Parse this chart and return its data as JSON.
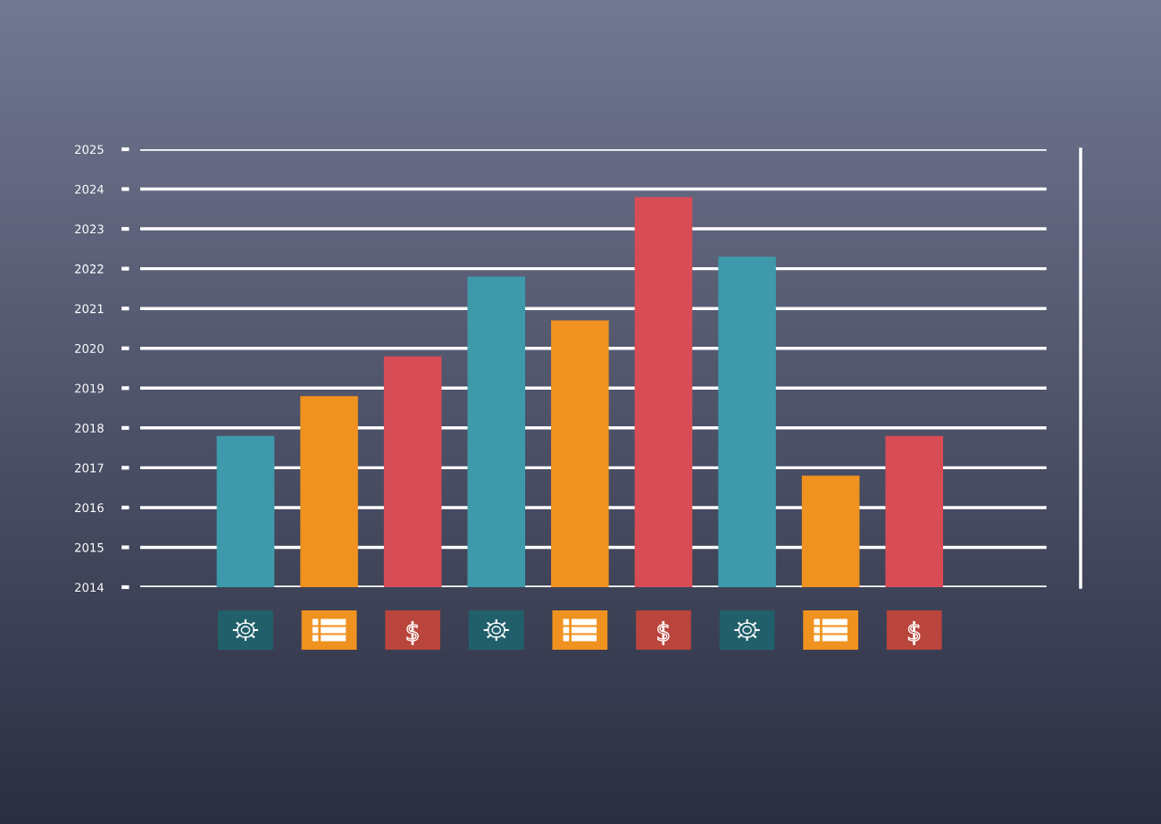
{
  "chart_data": {
    "type": "bar",
    "categories": [
      null,
      null,
      null,
      null,
      null,
      null,
      null,
      null,
      null
    ],
    "values": [
      2017.8,
      2018.8,
      2019.8,
      2021.8,
      2020.7,
      2023.8,
      2022.3,
      2016.8,
      2017.8
    ],
    "colors": [
      "#3e9aab",
      "#f0921f",
      "#d84c55",
      "#3e9aab",
      "#f0921f",
      "#d84c55",
      "#3e9aab",
      "#f0921f",
      "#d84c55"
    ],
    "ylim": [
      2014,
      2025
    ],
    "yticks": [
      2014,
      2015,
      2016,
      2017,
      2018,
      2019,
      2020,
      2021,
      2022,
      2023,
      2024,
      2025
    ],
    "grid": "y"
  }
}
